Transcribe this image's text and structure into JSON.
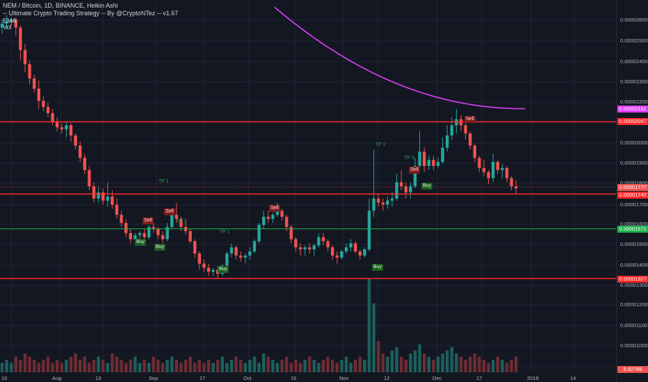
{
  "header": {
    "title": "NEM / Bitcoin, 1D, BINANCE, Heikin Ashi",
    "strategy": "-- Ultimate Crypto Trading Strategy -- By @CryptoNTez -- v1.67",
    "ema_label": "EMA",
    "vol_label": "Vol"
  },
  "axis": {
    "y_ticks": [
      "0.00002600",
      "0.00002500",
      "0.00002400",
      "0.00002300",
      "0.00002200",
      "0.00002000",
      "0.00001900",
      "0.00001800",
      "0.00001700",
      "0.00001600",
      "0.00001500",
      "0.00001400",
      "0.00001300",
      "0.00001200",
      "0.00001100",
      "0.00001000"
    ],
    "x_ticks": [
      "16",
      "Aug",
      "13",
      "Sep",
      "17",
      "Oct",
      "15",
      "Nov",
      "12",
      "Dec",
      "17",
      "2019",
      "14"
    ]
  },
  "price_tags": {
    "ema": "0.00002161",
    "resistance": "0.00002097",
    "current": "0.00001777",
    "support1": "0.00001742",
    "green": "0.00001571",
    "support2": "0.00001327",
    "volume": "5.92766"
  },
  "signals": [
    {
      "label": "Buy",
      "kind": "buy"
    },
    {
      "label": "Buy",
      "kind": "buy"
    },
    {
      "label": "Sell",
      "kind": "sell"
    },
    {
      "label": "Sell",
      "kind": "sell"
    },
    {
      "label": "Buy",
      "kind": "buy"
    },
    {
      "label": "Sell",
      "kind": "sell"
    },
    {
      "label": "Buy",
      "kind": "buy"
    },
    {
      "label": "Sell",
      "kind": "sell"
    },
    {
      "label": "Buy",
      "kind": "buy"
    },
    {
      "label": "Sell",
      "kind": "sell"
    },
    {
      "label": "TP 1",
      "kind": "tp"
    },
    {
      "label": "TP 1",
      "kind": "tp"
    },
    {
      "label": "TP 1",
      "kind": "tp"
    },
    {
      "label": "TP 1",
      "kind": "tp"
    },
    {
      "label": "TP 3",
      "kind": "tp"
    }
  ],
  "colors": {
    "background": "#131722",
    "bull": "#26a69a",
    "bear": "#ef5350",
    "ema": "#e040fb",
    "level": "#ff2a2a",
    "green_level": "#21b04b"
  },
  "chart_data": {
    "type": "candlestick",
    "style": "Heikin Ashi",
    "symbol": "NEM / Bitcoin",
    "interval": "1D",
    "exchange": "BINANCE",
    "x_labels": [
      "16",
      "Aug",
      "13",
      "Sep",
      "17",
      "Oct",
      "15",
      "Nov",
      "12",
      "Dec",
      "17",
      "2019",
      "14"
    ],
    "horizontal_levels": [
      2.097e-05,
      1.742e-05,
      1.571e-05,
      1.327e-05
    ],
    "ema_last": 2.161e-05,
    "last_price": 1.777e-05,
    "grid": true,
    "ohlc": [
      [
        2.56e-05,
        2.6e-05,
        2.53e-05,
        2.58e-05
      ],
      [
        2.58e-05,
        2.62e-05,
        2.55e-05,
        2.59e-05
      ],
      [
        2.59e-05,
        2.61e-05,
        2.57e-05,
        2.6e-05
      ],
      [
        2.6e-05,
        2.61e-05,
        2.52e-05,
        2.56e-05
      ],
      [
        2.56e-05,
        2.57e-05,
        2.4e-05,
        2.45e-05
      ],
      [
        2.45e-05,
        2.48e-05,
        2.34e-05,
        2.38e-05
      ],
      [
        2.38e-05,
        2.4e-05,
        2.28e-05,
        2.31e-05
      ],
      [
        2.31e-05,
        2.33e-05,
        2.24e-05,
        2.26e-05
      ],
      [
        2.26e-05,
        2.3e-05,
        2.16e-05,
        2.2e-05
      ],
      [
        2.2e-05,
        2.22e-05,
        2.15e-05,
        2.17e-05
      ],
      [
        2.17e-05,
        2.19e-05,
        2.12e-05,
        2.14e-05
      ],
      [
        2.14e-05,
        2.16e-05,
        2.08e-05,
        2.1e-05
      ],
      [
        2.1e-05,
        2.12e-05,
        2.05e-05,
        2.07e-05
      ],
      [
        2.07e-05,
        2.09e-05,
        2.04e-05,
        2.06e-05
      ],
      [
        2.06e-05,
        2.1e-05,
        2.02e-05,
        2.08e-05
      ],
      [
        2.08e-05,
        2.09e-05,
        2e-05,
        2.03e-05
      ],
      [
        2.03e-05,
        2.04e-05,
        1.96e-05,
        1.98e-05
      ],
      [
        1.98e-05,
        2e-05,
        1.9e-05,
        1.92e-05
      ],
      [
        1.92e-05,
        1.94e-05,
        1.84e-05,
        1.86e-05
      ],
      [
        1.86e-05,
        1.88e-05,
        1.76e-05,
        1.78e-05
      ],
      [
        1.78e-05,
        1.8e-05,
        1.7e-05,
        1.72e-05
      ],
      [
        1.72e-05,
        1.78e-05,
        1.7e-05,
        1.75e-05
      ],
      [
        1.75e-05,
        1.77e-05,
        1.69e-05,
        1.71e-05
      ],
      [
        1.71e-05,
        1.8e-05,
        1.68e-05,
        1.73e-05
      ],
      [
        1.73e-05,
        1.76e-05,
        1.67e-05,
        1.69e-05
      ],
      [
        1.69e-05,
        1.72e-05,
        1.62e-05,
        1.64e-05
      ],
      [
        1.64e-05,
        1.66e-05,
        1.58e-05,
        1.6e-05
      ],
      [
        1.6e-05,
        1.62e-05,
        1.53e-05,
        1.55e-05
      ],
      [
        1.55e-05,
        1.57e-05,
        1.5e-05,
        1.52e-05
      ],
      [
        1.52e-05,
        1.55e-05,
        1.5e-05,
        1.54e-05
      ],
      [
        1.54e-05,
        1.56e-05,
        1.52e-05,
        1.55e-05
      ],
      [
        1.55e-05,
        1.57e-05,
        1.51e-05,
        1.53e-05
      ],
      [
        1.53e-05,
        1.59e-05,
        1.52e-05,
        1.58e-05
      ],
      [
        1.58e-05,
        1.6e-05,
        1.55e-05,
        1.57e-05
      ],
      [
        1.57e-05,
        1.58e-05,
        1.52e-05,
        1.54e-05
      ],
      [
        1.54e-05,
        1.56e-05,
        1.5e-05,
        1.52e-05
      ],
      [
        1.52e-05,
        1.6e-05,
        1.51e-05,
        1.58e-05
      ],
      [
        1.58e-05,
        1.66e-05,
        1.57e-05,
        1.64e-05
      ],
      [
        1.64e-05,
        1.7e-05,
        1.6e-05,
        1.62e-05
      ],
      [
        1.62e-05,
        1.63e-05,
        1.56e-05,
        1.58e-05
      ],
      [
        1.58e-05,
        1.62e-05,
        1.54e-05,
        1.56e-05
      ],
      [
        1.56e-05,
        1.57e-05,
        1.5e-05,
        1.51e-05
      ],
      [
        1.51e-05,
        1.52e-05,
        1.43e-05,
        1.45e-05
      ],
      [
        1.45e-05,
        1.46e-05,
        1.37e-05,
        1.4e-05
      ],
      [
        1.4e-05,
        1.42e-05,
        1.36e-05,
        1.38e-05
      ],
      [
        1.38e-05,
        1.4e-05,
        1.34e-05,
        1.36e-05
      ],
      [
        1.36e-05,
        1.38e-05,
        1.34e-05,
        1.37e-05
      ],
      [
        1.37e-05,
        1.39e-05,
        1.33e-05,
        1.35e-05
      ],
      [
        1.35e-05,
        1.4e-05,
        1.34e-05,
        1.39e-05
      ],
      [
        1.39e-05,
        1.46e-05,
        1.38e-05,
        1.45e-05
      ],
      [
        1.45e-05,
        1.5e-05,
        1.43e-05,
        1.48e-05
      ],
      [
        1.48e-05,
        1.49e-05,
        1.42e-05,
        1.44e-05
      ],
      [
        1.44e-05,
        1.46e-05,
        1.41e-05,
        1.43e-05
      ],
      [
        1.43e-05,
        1.45e-05,
        1.4e-05,
        1.44e-05
      ],
      [
        1.44e-05,
        1.48e-05,
        1.42e-05,
        1.46e-05
      ],
      [
        1.46e-05,
        1.52e-05,
        1.45e-05,
        1.51e-05
      ],
      [
        1.51e-05,
        1.6e-05,
        1.5e-05,
        1.59e-05
      ],
      [
        1.59e-05,
        1.66e-05,
        1.57e-05,
        1.63e-05
      ],
      [
        1.63e-05,
        1.66e-05,
        1.6e-05,
        1.62e-05
      ],
      [
        1.62e-05,
        1.65e-05,
        1.6e-05,
        1.64e-05
      ],
      [
        1.64e-05,
        1.7e-05,
        1.63e-05,
        1.66e-05
      ],
      [
        1.66e-05,
        1.67e-05,
        1.61e-05,
        1.63e-05
      ],
      [
        1.63e-05,
        1.64e-05,
        1.56e-05,
        1.58e-05
      ],
      [
        1.58e-05,
        1.59e-05,
        1.5e-05,
        1.52e-05
      ],
      [
        1.52e-05,
        1.53e-05,
        1.46e-05,
        1.48e-05
      ],
      [
        1.48e-05,
        1.5e-05,
        1.44e-05,
        1.47e-05
      ],
      [
        1.47e-05,
        1.49e-05,
        1.44e-05,
        1.48e-05
      ],
      [
        1.48e-05,
        1.5e-05,
        1.45e-05,
        1.47e-05
      ],
      [
        1.47e-05,
        1.5e-05,
        1.44e-05,
        1.49e-05
      ],
      [
        1.49e-05,
        1.55e-05,
        1.48e-05,
        1.53e-05
      ],
      [
        1.53e-05,
        1.55e-05,
        1.49e-05,
        1.51e-05
      ],
      [
        1.51e-05,
        1.52e-05,
        1.46e-05,
        1.48e-05
      ],
      [
        1.48e-05,
        1.49e-05,
        1.42e-05,
        1.44e-05
      ],
      [
        1.44e-05,
        1.46e-05,
        1.4e-05,
        1.43e-05
      ],
      [
        1.43e-05,
        1.47e-05,
        1.42e-05,
        1.46e-05
      ],
      [
        1.46e-05,
        1.5e-05,
        1.45e-05,
        1.48e-05
      ],
      [
        1.48e-05,
        1.52e-05,
        1.46e-05,
        1.5e-05
      ],
      [
        1.5e-05,
        1.51e-05,
        1.45e-05,
        1.46e-05
      ],
      [
        1.46e-05,
        1.47e-05,
        1.42e-05,
        1.44e-05
      ],
      [
        1.44e-05,
        1.48e-05,
        1.43e-05,
        1.47e-05
      ],
      [
        1.47e-05,
        1.72e-05,
        1.46e-05,
        1.66e-05
      ],
      [
        1.66e-05,
        1.96e-05,
        1.63e-05,
        1.72e-05
      ],
      [
        1.72e-05,
        1.74e-05,
        1.68e-05,
        1.7e-05
      ],
      [
        1.7e-05,
        1.72e-05,
        1.66e-05,
        1.69e-05
      ],
      [
        1.69e-05,
        1.73e-05,
        1.67e-05,
        1.71e-05
      ],
      [
        1.71e-05,
        1.75e-05,
        1.68e-05,
        1.72e-05
      ],
      [
        1.72e-05,
        1.84e-05,
        1.71e-05,
        1.8e-05
      ],
      [
        1.8e-05,
        1.86e-05,
        1.76e-05,
        1.78e-05
      ],
      [
        1.78e-05,
        1.8e-05,
        1.72e-05,
        1.75e-05
      ],
      [
        1.75e-05,
        1.8e-05,
        1.72e-05,
        1.78e-05
      ],
      [
        1.78e-05,
        1.92e-05,
        1.77e-05,
        1.88e-05
      ],
      [
        1.88e-05,
        2.05e-05,
        1.86e-05,
        1.95e-05
      ],
      [
        1.95e-05,
        1.97e-05,
        1.85e-05,
        1.88e-05
      ],
      [
        1.88e-05,
        1.93e-05,
        1.86e-05,
        1.91e-05
      ],
      [
        1.91e-05,
        1.93e-05,
        1.86e-05,
        1.88e-05
      ],
      [
        1.88e-05,
        1.92e-05,
        1.87e-05,
        1.9e-05
      ],
      [
        1.9e-05,
        2.02e-05,
        1.89e-05,
        1.97e-05
      ],
      [
        1.97e-05,
        2.08e-05,
        1.95e-05,
        2.03e-05
      ],
      [
        2.03e-05,
        2.12e-05,
        2.01e-05,
        2.08e-05
      ],
      [
        2.08e-05,
        2.16e-05,
        2.04e-05,
        2.11e-05
      ],
      [
        2.11e-05,
        2.13e-05,
        2.05e-05,
        2.08e-05
      ],
      [
        2.08e-05,
        2.1e-05,
        2.01e-05,
        2.04e-05
      ],
      [
        2.04e-05,
        2.05e-05,
        1.96e-05,
        1.98e-05
      ],
      [
        1.98e-05,
        1.99e-05,
        1.9e-05,
        1.92e-05
      ],
      [
        1.92e-05,
        1.93e-05,
        1.85e-05,
        1.87e-05
      ],
      [
        1.87e-05,
        1.91e-05,
        1.83e-05,
        1.85e-05
      ],
      [
        1.85e-05,
        1.86e-05,
        1.79e-05,
        1.82e-05
      ],
      [
        1.82e-05,
        1.94e-05,
        1.8e-05,
        1.9e-05
      ],
      [
        1.9e-05,
        1.91e-05,
        1.84e-05,
        1.86e-05
      ],
      [
        1.86e-05,
        1.89e-05,
        1.82e-05,
        1.87e-05
      ],
      [
        1.87e-05,
        1.88e-05,
        1.8e-05,
        1.82e-05
      ],
      [
        1.82e-05,
        1.83e-05,
        1.76e-05,
        1.78e-05
      ],
      [
        1.78e-05,
        1.81e-05,
        1.74e-05,
        1.77e-05
      ]
    ],
    "volume": [
      3,
      4,
      3,
      5,
      4,
      6,
      5,
      4,
      3,
      4,
      5,
      3,
      4,
      3,
      4,
      5,
      6,
      4,
      5,
      3,
      4,
      5,
      4,
      3,
      6,
      5,
      4,
      3,
      4,
      5,
      3,
      4,
      3,
      5,
      4,
      3,
      4,
      5,
      4,
      3,
      4,
      5,
      3,
      4,
      3,
      4,
      3,
      4,
      5,
      3,
      4,
      5,
      4,
      3,
      4,
      5,
      3,
      6,
      5,
      4,
      3,
      4,
      5,
      3,
      4,
      3,
      4,
      5,
      4,
      3,
      4,
      5,
      4,
      3,
      4,
      5,
      3,
      4,
      5,
      4,
      30,
      22,
      10,
      6,
      5,
      7,
      8,
      5,
      4,
      6,
      7,
      9,
      6,
      5,
      4,
      5,
      6,
      7,
      8,
      6,
      5,
      4,
      5,
      6,
      5,
      4,
      3,
      4,
      5,
      4,
      3,
      4,
      5
    ]
  }
}
